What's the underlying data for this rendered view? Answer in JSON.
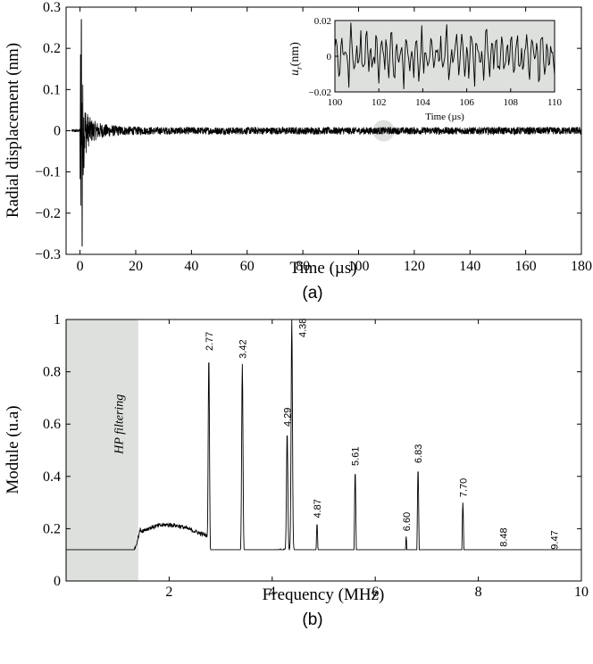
{
  "chart_data": [
    {
      "id": "a",
      "type": "line",
      "caption": "(a)",
      "xlabel": "Time (µs)",
      "ylabel": "Radial displacement (nm)",
      "xlim": [
        -5,
        180
      ],
      "ylim": [
        -0.3,
        0.3
      ],
      "xticks": [
        0,
        20,
        40,
        60,
        80,
        100,
        120,
        140,
        160,
        180
      ],
      "yticks": [
        0.3,
        0.2,
        0.1,
        0,
        -0.1,
        -0.2,
        -0.3
      ],
      "ytick_labels": [
        "0.3",
        "0.2",
        "0.1",
        "0",
        "−0.1",
        "−0.2",
        "−0.3"
      ],
      "series": [
        {
          "name": "radial displacement",
          "description": "impulse near t=0 with peaks +0.27 / −0.28 nm, decaying to a noise floor of about ±0.01 nm",
          "impulse_time": 0.5,
          "peak_max": 0.27,
          "peak_min": -0.28,
          "floor_amplitude": 0.01
        }
      ],
      "highlight": {
        "x": 109,
        "y": 0,
        "note": "zoomed region shown in inset"
      },
      "inset": {
        "xlabel": "Time (µs)",
        "ylabel_main": "u",
        "ylabel_sub": "r",
        "ylabel_unit": "(nm)",
        "xlim": [
          100,
          110
        ],
        "ylim": [
          -0.02,
          0.02
        ],
        "xticks": [
          100,
          102,
          104,
          106,
          108,
          110
        ],
        "yticks": [
          0.02,
          0,
          -0.02
        ],
        "ytick_labels": [
          "0.02",
          "0",
          "−0.02"
        ],
        "background": "#dde0dd"
      }
    },
    {
      "id": "b",
      "type": "line",
      "caption": "(b)",
      "xlabel": "Frequency (MHz)",
      "ylabel": "Module (u.a)",
      "xlim": [
        0,
        10
      ],
      "ylim": [
        0,
        1
      ],
      "xticks": [
        2,
        4,
        6,
        8,
        10
      ],
      "yticks": [
        0,
        0.2,
        0.4,
        0.6,
        0.8,
        1
      ],
      "ytick_labels": [
        "0",
        "0.2",
        "0.4",
        "0.6",
        "0.8",
        "1"
      ],
      "shaded_region": {
        "x0": 0,
        "x1": 1.4,
        "label": "HP filtering",
        "color": "#dde0dd"
      },
      "peaks": [
        {
          "f": 2.77,
          "label": "2.77",
          "height": 0.86
        },
        {
          "f": 3.42,
          "label": "3.42",
          "height": 0.83
        },
        {
          "f": 4.29,
          "label": "4.29",
          "height": 0.57
        },
        {
          "f": 4.38,
          "label": "4.38",
          "height": 1.0
        },
        {
          "f": 4.87,
          "label": "4.87",
          "height": 0.22
        },
        {
          "f": 5.61,
          "label": "5.61",
          "height": 0.42
        },
        {
          "f": 6.6,
          "label": "6.60",
          "height": 0.17
        },
        {
          "f": 6.83,
          "label": "6.83",
          "height": 0.43
        },
        {
          "f": 7.7,
          "label": "7.70",
          "height": 0.3
        },
        {
          "f": 8.48,
          "label": "8.48",
          "height": 0.11
        },
        {
          "f": 9.47,
          "label": "9.47",
          "height": 0.1
        }
      ]
    }
  ],
  "colors": {
    "line": "#000000",
    "shade": "#dde0dd",
    "highlight": "#dde0dd"
  }
}
